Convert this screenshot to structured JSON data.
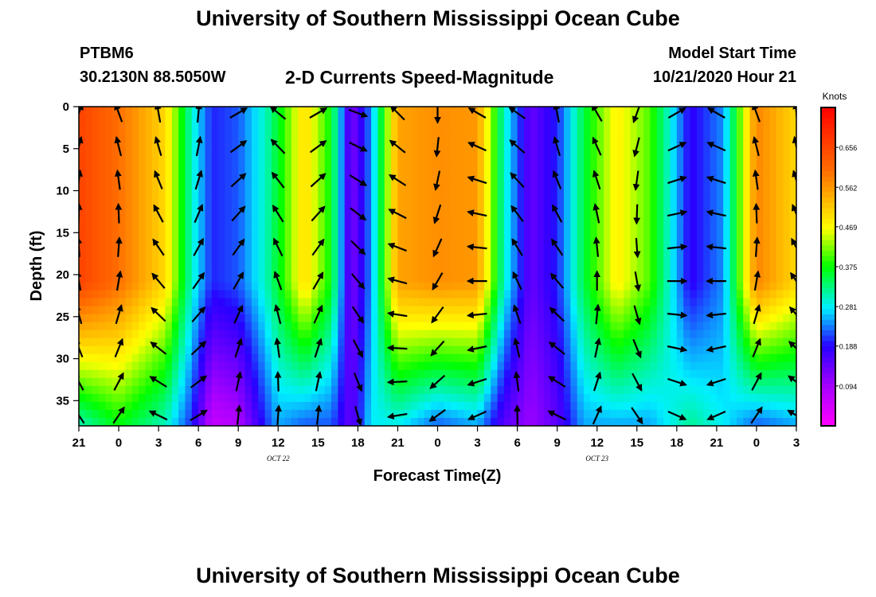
{
  "header": {
    "title": "University of Southern Mississippi Ocean Cube",
    "station": "PTBM6",
    "coords": "30.2130N 88.5050W",
    "subtitle": "2-D Currents Speed-Magnitude",
    "model_start_label": "Model Start Time",
    "model_start_value": "10/21/2020 Hour 21"
  },
  "footer": {
    "title": "University of Southern Mississippi Ocean Cube"
  },
  "chart_data": {
    "type": "heatmap",
    "title": "2-D Currents Speed-Magnitude",
    "xlabel": "Forecast Time(Z)",
    "ylabel": "Depth (ft)",
    "xlim_hours": [
      0,
      54
    ],
    "ylim": [
      0,
      38
    ],
    "x_ticks": [
      "21",
      "0",
      "3",
      "6",
      "9",
      "12",
      "15",
      "18",
      "21",
      "0",
      "3",
      "6",
      "9",
      "12",
      "15",
      "18",
      "21",
      "0",
      "3"
    ],
    "date_labels": [
      {
        "text": "OCT 22",
        "at_tick_index": 5
      },
      {
        "text": "OCT 23",
        "at_tick_index": 13
      }
    ],
    "y_ticks": [
      "0",
      "5",
      "10",
      "15",
      "20",
      "25",
      "30",
      "35"
    ],
    "colorbar": {
      "label": "Knots",
      "ticks": [
        "0.656",
        "0.562",
        "0.469",
        "0.375",
        "0.281",
        "0.188",
        "0.094"
      ],
      "min": 0.0,
      "max": 0.75
    },
    "speed_by_time": [
      {
        "h": 0,
        "surface": 0.66,
        "bottom": 0.3
      },
      {
        "h": 3,
        "surface": 0.6,
        "bottom": 0.37
      },
      {
        "h": 6.5,
        "surface": 0.5,
        "bottom": 0.3
      },
      {
        "h": 8.5,
        "surface": 0.3,
        "bottom": 0.2
      },
      {
        "h": 10,
        "surface": 0.2,
        "bottom": 0.06
      },
      {
        "h": 12,
        "surface": 0.22,
        "bottom": 0.08
      },
      {
        "h": 14,
        "surface": 0.3,
        "bottom": 0.2
      },
      {
        "h": 15,
        "surface": 0.36,
        "bottom": 0.25
      },
      {
        "h": 17,
        "surface": 0.5,
        "bottom": 0.22
      },
      {
        "h": 19,
        "surface": 0.37,
        "bottom": 0.22
      },
      {
        "h": 20.5,
        "surface": 0.12,
        "bottom": 0.14
      },
      {
        "h": 22,
        "surface": 0.24,
        "bottom": 0.28
      },
      {
        "h": 24,
        "surface": 0.55,
        "bottom": 0.28
      },
      {
        "h": 27,
        "surface": 0.57,
        "bottom": 0.22
      },
      {
        "h": 30,
        "surface": 0.56,
        "bottom": 0.25
      },
      {
        "h": 32,
        "surface": 0.3,
        "bottom": 0.15
      },
      {
        "h": 34,
        "surface": 0.14,
        "bottom": 0.1
      },
      {
        "h": 36,
        "surface": 0.2,
        "bottom": 0.15
      },
      {
        "h": 38,
        "surface": 0.35,
        "bottom": 0.25
      },
      {
        "h": 40.5,
        "surface": 0.48,
        "bottom": 0.25
      },
      {
        "h": 43,
        "surface": 0.4,
        "bottom": 0.25
      },
      {
        "h": 46,
        "surface": 0.18,
        "bottom": 0.32
      },
      {
        "h": 48.5,
        "surface": 0.24,
        "bottom": 0.28
      },
      {
        "h": 51,
        "surface": 0.58,
        "bottom": 0.22
      },
      {
        "h": 54,
        "surface": 0.5,
        "bottom": 0.25
      }
    ],
    "vector_depths_ft": [
      0,
      4,
      8,
      12,
      16,
      20,
      24,
      28,
      32,
      36
    ],
    "vector_times_hours": [
      0,
      3,
      6,
      9,
      12,
      15,
      18,
      21,
      24,
      27,
      30,
      33,
      36,
      39,
      42,
      45,
      48,
      51,
      54
    ],
    "direction_by_time_deg": [
      20,
      -20,
      -10,
      5,
      60,
      -50,
      60,
      110,
      -45,
      180,
      -60,
      -55,
      -10,
      -30,
      200,
      60,
      -60,
      -20,
      -5,
      60,
      70,
      -30,
      -10,
      -20,
      210
    ]
  }
}
